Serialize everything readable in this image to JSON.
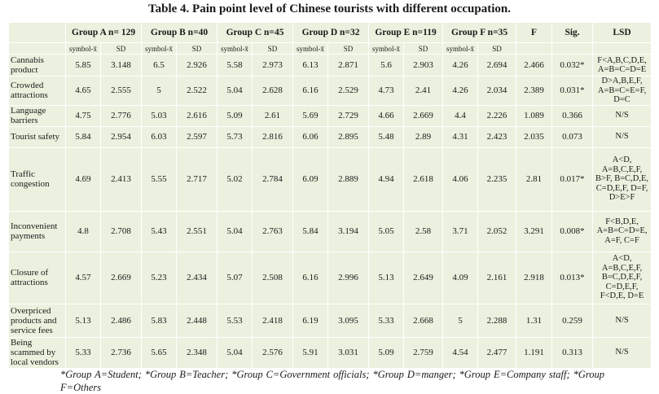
{
  "title": "Table 4. Pain point level of Chinese tourists with different occupation.",
  "headers": {
    "group_a": "Group A n= 129",
    "group_b": "Group B n=40",
    "group_c": "Group C n=45",
    "group_d": "Group D n=32",
    "group_e": "Group E n=119",
    "group_f": "Group F n=35",
    "f": "F",
    "sig": "Sig.",
    "lsd": "LSD",
    "symbol_label": "symbol-x̄",
    "sd_label": "SD"
  },
  "rows": [
    {
      "label": "Cannabis product",
      "a_m": "5.85",
      "a_sd": "3.148",
      "b_m": "6.5",
      "b_sd": "2.926",
      "c_m": "5.58",
      "c_sd": "2.973",
      "d_m": "6.13",
      "d_sd": "2.871",
      "e_m": "5.6",
      "e_sd": "2.903",
      "f_m": "4.26",
      "f_sd": "2.694",
      "f_val": "2.466",
      "sig": "0.032*",
      "lsd": "F<A,B,C,D,E, A=B=C=D=E"
    },
    {
      "label": "Crowded attractions",
      "a_m": "4.65",
      "a_sd": "2.555",
      "b_m": "5",
      "b_sd": "2.522",
      "c_m": "5.04",
      "c_sd": "2.628",
      "d_m": "6.16",
      "d_sd": "2.529",
      "e_m": "4.73",
      "e_sd": "2.41",
      "f_m": "4.26",
      "f_sd": "2.034",
      "f_val": "2.389",
      "sig": "0.031*",
      "lsd": "D>A,B,E,F, A=B=C=E=F, D=C"
    },
    {
      "label": "Language barriers",
      "a_m": "4.75",
      "a_sd": "2.776",
      "b_m": "5.03",
      "b_sd": "2.616",
      "c_m": "5.09",
      "c_sd": "2.61",
      "d_m": "5.69",
      "d_sd": "2.729",
      "e_m": "4.66",
      "e_sd": "2.669",
      "f_m": "4.4",
      "f_sd": "2.226",
      "f_val": "1.089",
      "sig": "0.366",
      "lsd": "N/S"
    },
    {
      "label": "Tourist safety",
      "a_m": "5.84",
      "a_sd": "2.954",
      "b_m": "6.03",
      "b_sd": "2.597",
      "c_m": "5.73",
      "c_sd": "2.816",
      "d_m": "6.06",
      "d_sd": "2.895",
      "e_m": "5.48",
      "e_sd": "2.89",
      "f_m": "4.31",
      "f_sd": "2.423",
      "f_val": "2.035",
      "sig": "0.073",
      "lsd": "N/S"
    },
    {
      "label": "Traffic congestion",
      "a_m": "4.69",
      "a_sd": "2.413",
      "b_m": "5.55",
      "b_sd": "2.717",
      "c_m": "5.02",
      "c_sd": "2.784",
      "d_m": "6.09",
      "d_sd": "2.889",
      "e_m": "4.94",
      "e_sd": "2.618",
      "f_m": "4.06",
      "f_sd": "2.235",
      "f_val": "2.81",
      "sig": "0.017*",
      "lsd": "A<D, A=B,C,E,F, B>F, B=C,D,E, C=D,E,F, D=F, D>E>F"
    },
    {
      "label": "Inconvenient payments",
      "a_m": "4.8",
      "a_sd": "2.708",
      "b_m": "5.43",
      "b_sd": "2.551",
      "c_m": "5.04",
      "c_sd": "2.763",
      "d_m": "5.84",
      "d_sd": "3.194",
      "e_m": "5.05",
      "e_sd": "2.58",
      "f_m": "3.71",
      "f_sd": "2.052",
      "f_val": "3.291",
      "sig": "0.008*",
      "lsd": "F<B,D,E, A=B=C=D=E, A=F, C=F"
    },
    {
      "label": "Closure of attractions",
      "a_m": "4.57",
      "a_sd": "2.669",
      "b_m": "5.23",
      "b_sd": "2.434",
      "c_m": "5.07",
      "c_sd": "2.508",
      "d_m": "6.16",
      "d_sd": "2.996",
      "e_m": "5.13",
      "e_sd": "2.649",
      "f_m": "4.09",
      "f_sd": "2.161",
      "f_val": "2.918",
      "sig": "0.013*",
      "lsd": "A<D, A=B,C,E,F, B=C,D,E,F, C=D,E,F, F<D,E, D=E"
    },
    {
      "label": "Overpriced products and service fees",
      "a_m": "5.13",
      "a_sd": "2.486",
      "b_m": "5.83",
      "b_sd": "2.448",
      "c_m": "5.53",
      "c_sd": "2.418",
      "d_m": "6.19",
      "d_sd": "3.095",
      "e_m": "5.33",
      "e_sd": "2.668",
      "f_m": "5",
      "f_sd": "2.288",
      "f_val": "1.31",
      "sig": "0.259",
      "lsd": "N/S"
    },
    {
      "label": "Being scammed by local vendors",
      "a_m": "5.33",
      "a_sd": "2.736",
      "b_m": "5.65",
      "b_sd": "2.348",
      "c_m": "5.04",
      "c_sd": "2.576",
      "d_m": "5.91",
      "d_sd": "3.031",
      "e_m": "5.09",
      "e_sd": "2.759",
      "f_m": "4.54",
      "f_sd": "2.477",
      "f_val": "1.191",
      "sig": "0.313",
      "lsd": "N/S"
    }
  ],
  "footnote": "*Group A=Student; *Group B=Teacher; *Group C=Government officials; *Group D=manger; *Group E=Company staff; *Group F=Others"
}
